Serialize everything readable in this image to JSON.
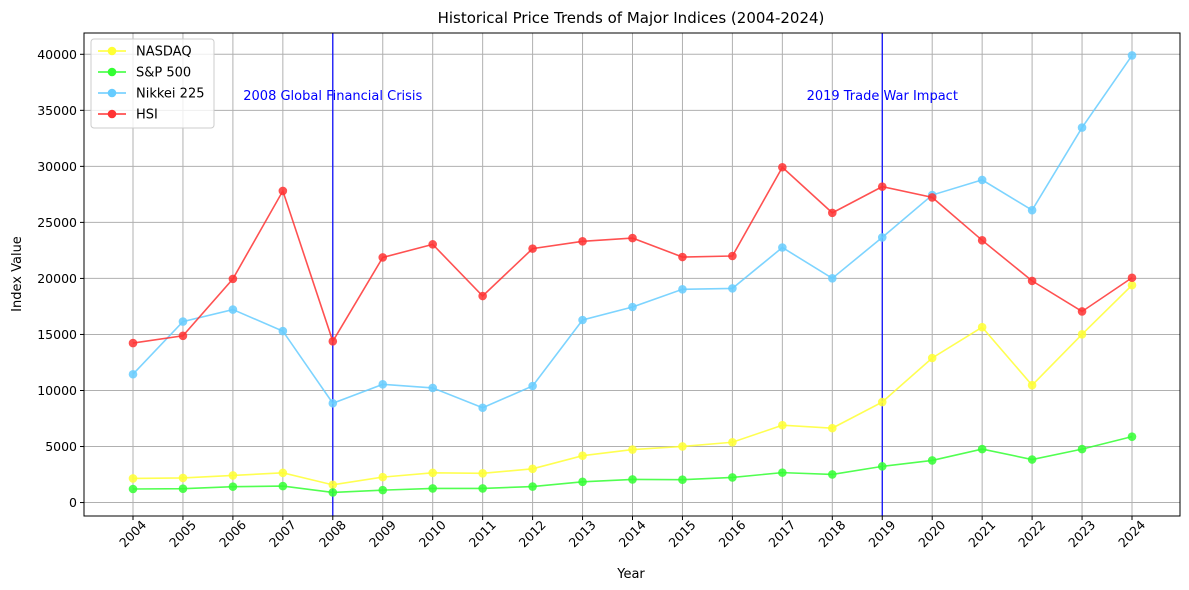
{
  "chart_data": {
    "type": "line",
    "title": "Historical Price Trends of Major Indices (2004-2024)",
    "xlabel": "Year",
    "ylabel": "Index Value",
    "categories": [
      "2004",
      "2005",
      "2006",
      "2007",
      "2008",
      "2009",
      "2010",
      "2011",
      "2012",
      "2013",
      "2014",
      "2015",
      "2016",
      "2017",
      "2018",
      "2019",
      "2020",
      "2021",
      "2022",
      "2023",
      "2024"
    ],
    "ylim": [
      -1200,
      41900
    ],
    "yticks": [
      0,
      5000,
      10000,
      15000,
      20000,
      25000,
      30000,
      35000,
      40000
    ],
    "grid": true,
    "legend_position": "top-left",
    "series": [
      {
        "name": "NASDAQ",
        "color": "#ffff33",
        "values": [
          2150,
          2200,
          2420,
          2650,
          1580,
          2270,
          2650,
          2610,
          3010,
          4180,
          4730,
          5010,
          5380,
          6900,
          6640,
          8970,
          12900,
          15650,
          10470,
          15010,
          19400
        ]
      },
      {
        "name": "S&P 500",
        "color": "#33ff33",
        "values": [
          1210,
          1240,
          1420,
          1470,
          900,
          1110,
          1260,
          1260,
          1430,
          1850,
          2060,
          2040,
          2240,
          2670,
          2510,
          3230,
          3760,
          4770,
          3840,
          4770,
          5880
        ]
      },
      {
        "name": "Nikkei 225",
        "color": "#66ccff",
        "values": [
          11450,
          16150,
          17220,
          15300,
          8860,
          10550,
          10230,
          8460,
          10400,
          16290,
          17450,
          19030,
          19110,
          22760,
          20010,
          23660,
          27440,
          28790,
          26090,
          33460,
          39900
        ]
      },
      {
        "name": "HSI",
        "color": "#ff3333",
        "values": [
          14230,
          14880,
          19960,
          27810,
          14390,
          21870,
          23040,
          18430,
          22660,
          23310,
          23600,
          21910,
          22000,
          29920,
          25850,
          28190,
          27230,
          23400,
          19780,
          17050,
          20060
        ]
      }
    ],
    "annotations": [
      {
        "x": "2008",
        "label": "2008 Global Financial Crisis",
        "color": "#0000ff"
      },
      {
        "x": "2019",
        "label": "2019 Trade War Impact",
        "color": "#0000ff"
      }
    ]
  }
}
